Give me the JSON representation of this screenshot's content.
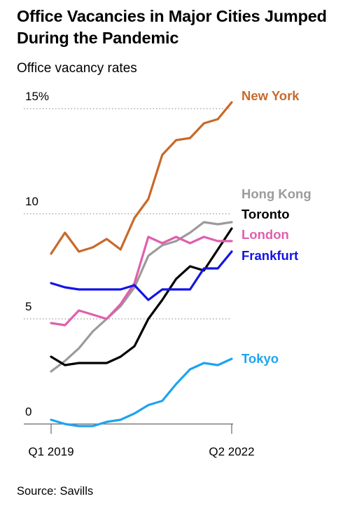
{
  "title": "Office Vacancies in Major Cities Jumped During the Pandemic",
  "subtitle": "Office vacancy rates",
  "source": "Source: Savills",
  "colors": {
    "New York": "#c8692a",
    "Hong Kong": "#9b9b9b",
    "Toronto": "#000000",
    "London": "#e05fae",
    "Frankfurt": "#1414e6",
    "Tokyo": "#1fa3f0",
    "grid": "#9a9a9a"
  },
  "chart_data": {
    "type": "line",
    "title": "Office Vacancies in Major Cities Jumped During the Pandemic",
    "ylabel": "Office vacancy rates",
    "xlabel": "",
    "x_tick_labels": [
      "Q1 2019",
      "Q2 2022"
    ],
    "y_ticks": [
      0,
      5,
      10,
      15
    ],
    "y_tick_labels": [
      "0",
      "5",
      "10",
      "15%"
    ],
    "ylim": [
      -0.8,
      15.5
    ],
    "grid": "dotted horizontal lines at 5, 10 and 15",
    "legend": "labels at right end of each line",
    "x": [
      "Q1 2019",
      "Q2 2019",
      "Q3 2019",
      "Q4 2019",
      "Q1 2020",
      "Q2 2020",
      "Q3 2020",
      "Q4 2020",
      "Q1 2021",
      "Q2 2021",
      "Q3 2021",
      "Q4 2021",
      "Q1 2022",
      "Q2 2022"
    ],
    "series": [
      {
        "name": "New York",
        "values": [
          8.1,
          9.1,
          8.2,
          8.4,
          8.8,
          8.3,
          9.8,
          10.7,
          12.8,
          13.5,
          13.6,
          14.3,
          14.5,
          15.3
        ]
      },
      {
        "name": "Hong Kong",
        "values": [
          2.5,
          3.0,
          3.6,
          4.4,
          5.0,
          5.6,
          6.5,
          8.0,
          8.5,
          8.7,
          9.1,
          9.6,
          9.5,
          9.6
        ]
      },
      {
        "name": "Toronto",
        "values": [
          3.2,
          2.8,
          2.9,
          2.9,
          2.9,
          3.2,
          3.7,
          5.0,
          5.9,
          6.9,
          7.5,
          7.3,
          8.3,
          9.3
        ]
      },
      {
        "name": "London",
        "values": [
          4.8,
          4.7,
          5.4,
          5.2,
          5.0,
          5.7,
          6.7,
          8.9,
          8.6,
          8.9,
          8.6,
          8.9,
          8.7,
          8.7
        ]
      },
      {
        "name": "Frankfurt",
        "values": [
          6.7,
          6.5,
          6.4,
          6.4,
          6.4,
          6.4,
          6.6,
          5.9,
          6.4,
          6.4,
          6.4,
          7.4,
          7.4,
          8.2
        ]
      },
      {
        "name": "Tokyo",
        "values": [
          0.2,
          0.0,
          -0.1,
          -0.1,
          0.1,
          0.2,
          0.5,
          0.9,
          1.1,
          1.9,
          2.6,
          2.9,
          2.8,
          3.1
        ]
      }
    ]
  }
}
